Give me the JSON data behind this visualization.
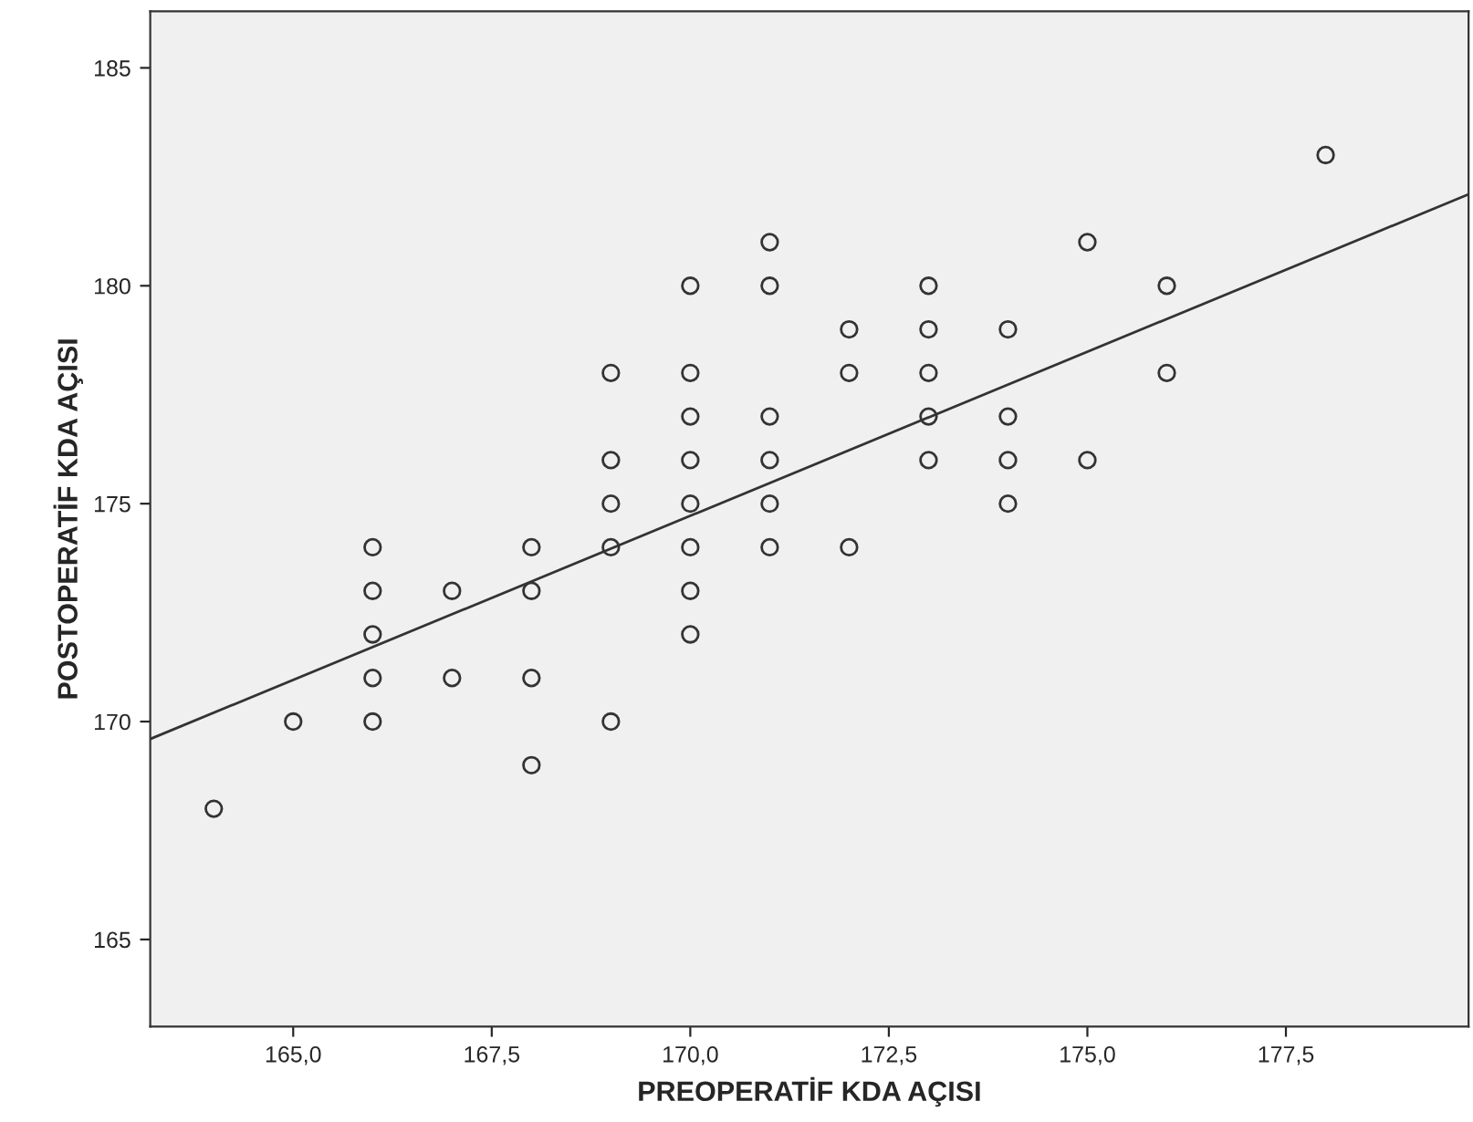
{
  "chart_data": {
    "type": "scatter",
    "xlabel": "PREOPERATİF KDA AÇISI",
    "ylabel": "POSTOPERATİF KDA AÇISI",
    "grid": false,
    "series": [
      {
        "marker": "circle",
        "color": "#333333",
        "x": [
          164,
          165,
          166,
          166,
          166,
          166,
          166,
          167,
          167,
          168,
          168,
          168,
          168,
          169,
          169,
          169,
          169,
          169,
          170,
          170,
          170,
          170,
          170,
          170,
          170,
          170,
          171,
          171,
          171,
          171,
          171,
          171,
          172,
          172,
          172,
          173,
          173,
          173,
          173,
          173,
          174,
          174,
          174,
          174,
          175,
          175,
          176,
          176,
          178
        ],
        "values": [
          168,
          170,
          174,
          173,
          172,
          171,
          170,
          173,
          171,
          174,
          173,
          171,
          169,
          178,
          176,
          175,
          174,
          170,
          180,
          178,
          177,
          176,
          175,
          174,
          173,
          172,
          181,
          180,
          177,
          176,
          175,
          174,
          179,
          178,
          174,
          180,
          179,
          178,
          177,
          176,
          179,
          177,
          176,
          175,
          181,
          176,
          180,
          178,
          183
        ]
      },
      {
        "type": "line",
        "color": "#333333",
        "x": [
          163.2,
          179.8
        ],
        "values": [
          169.6,
          182.1
        ]
      }
    ],
    "xlim": [
      163.2,
      179.8
    ],
    "ylim": [
      163.0,
      186.3
    ],
    "xticks": [
      {
        "value": 165,
        "label": "165,0"
      },
      {
        "value": 167.5,
        "label": "167,5"
      },
      {
        "value": 170,
        "label": "170,0"
      },
      {
        "value": 172.5,
        "label": "172,5"
      },
      {
        "value": 175,
        "label": "175,0"
      },
      {
        "value": 177.5,
        "label": "177,5"
      }
    ],
    "yticks": [
      165,
      170,
      175,
      180,
      185
    ]
  }
}
